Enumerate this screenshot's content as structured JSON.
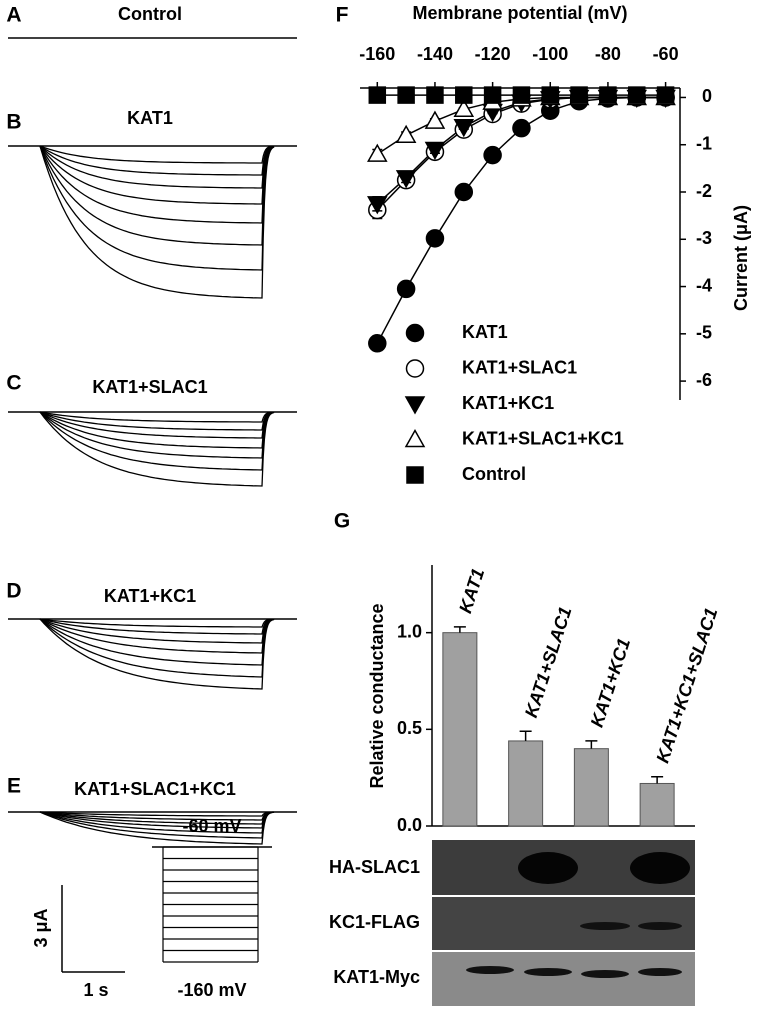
{
  "traces": [
    {
      "letter": "A",
      "title": "Control"
    },
    {
      "letter": "B",
      "title": "KAT1"
    },
    {
      "letter": "C",
      "title": "KAT1+SLAC1"
    },
    {
      "letter": "D",
      "title": "KAT1+KC1"
    },
    {
      "letter": "E",
      "title": "KAT1+SLAC1+KC1"
    }
  ],
  "scale_bar": {
    "current": "3 μA",
    "time": "1 s",
    "holding": "-60 mV",
    "step": "-160 mV"
  },
  "chart_data": [
    {
      "letter": "F",
      "type": "line",
      "xlabel": "Membrane potential (mV)",
      "ylabel": "Current (μA)",
      "x": [
        -160,
        -150,
        -140,
        -130,
        -120,
        -110,
        -100,
        -90,
        -80,
        -70,
        -60
      ],
      "xlim": [
        -166,
        -55
      ],
      "xticks": [
        -160,
        -140,
        -120,
        -100,
        -80,
        -60
      ],
      "ylim": [
        -6.4,
        0.2
      ],
      "yticks": [
        0,
        -1,
        -2,
        -3,
        -4,
        -5,
        -6
      ],
      "legend": "lower left",
      "series": [
        {
          "name": "KAT1",
          "color": "#000000",
          "marker": "circle-filled",
          "values": [
            -5.2,
            -4.05,
            -2.98,
            -2.0,
            -1.22,
            -0.65,
            -0.28,
            -0.08,
            -0.02,
            0,
            0
          ],
          "errors": [
            0.15,
            0.12,
            0.1,
            0.08,
            0.05,
            0.04,
            0.03,
            0.02,
            0.01,
            0.01,
            0.01
          ]
        },
        {
          "name": "KAT1+SLAC1",
          "color": "#000000",
          "marker": "circle-open",
          "values": [
            -2.38,
            -1.75,
            -1.15,
            -0.68,
            -0.35,
            -0.13,
            -0.04,
            0,
            0,
            0,
            0
          ],
          "errors": [
            0.18,
            0.12,
            0.1,
            0.06,
            0.04,
            0.03,
            0.02,
            0.01,
            0.01,
            0.01,
            0.01
          ]
        },
        {
          "name": "KAT1+KC1",
          "color": "#000000",
          "marker": "triangle-down-filled",
          "values": [
            -2.25,
            -1.7,
            -1.1,
            -0.62,
            -0.3,
            -0.1,
            -0.03,
            0,
            0,
            0,
            0
          ],
          "errors": [
            0.15,
            0.1,
            0.08,
            0.05,
            0.04,
            0.03,
            0.02,
            0.01,
            0.01,
            0.01,
            0.01
          ]
        },
        {
          "name": "KAT1+SLAC1+KC1",
          "color": "#000000",
          "marker": "triangle-up-open",
          "values": [
            -1.2,
            -0.8,
            -0.5,
            -0.25,
            -0.1,
            -0.03,
            0,
            0,
            0,
            0,
            0
          ],
          "errors": [
            0.1,
            0.07,
            0.05,
            0.03,
            0.02,
            0.01,
            0.01,
            0.01,
            0.01,
            0.01,
            0.01
          ]
        },
        {
          "name": "Control",
          "color": "#000000",
          "marker": "square-filled",
          "values": [
            0.05,
            0.05,
            0.05,
            0.05,
            0.05,
            0.05,
            0.05,
            0.05,
            0.05,
            0.05,
            0.05
          ]
        }
      ]
    },
    {
      "letter": "G",
      "type": "bar",
      "ylabel": "Relative conductance",
      "categories": [
        "KAT1",
        "KAT1+SLAC1",
        "KAT1+KC1",
        "KAT1+KC1+SLAC1"
      ],
      "values": [
        1.0,
        0.44,
        0.4,
        0.22
      ],
      "errors": [
        0.03,
        0.05,
        0.04,
        0.035
      ],
      "color": "#a0a0a0",
      "ylim": [
        0,
        1.35
      ],
      "yticks": [
        {
          "value": 0,
          "label": "0.0"
        },
        {
          "value": 0.5,
          "label": "0.5"
        },
        {
          "value": 1,
          "label": "1.0"
        }
      ],
      "blots": [
        "HA-SLAC1",
        "KC1-FLAG",
        "KAT1-Myc"
      ]
    }
  ]
}
